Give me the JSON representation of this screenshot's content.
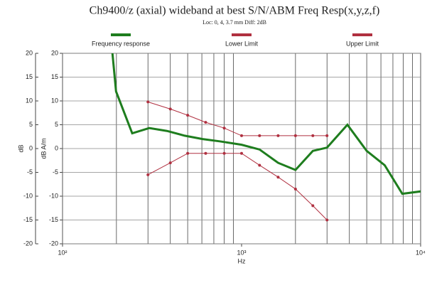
{
  "chart_data": {
    "type": "line",
    "title": "Ch9400/z (axial) wideband at best S/N/ABM Freq Resp(x,y,z,f)",
    "subtitle": "Loc: 0, 4, 3.7 mm Diff: 2dB",
    "x_label": "Hz",
    "y_label": "dB",
    "y2_label": "dB A/m",
    "xscale": "log",
    "xlim": [
      100,
      10000
    ],
    "xticks": [
      {
        "value": 100,
        "label": "10²"
      },
      {
        "value": 1000,
        "label": "10³"
      },
      {
        "value": 10000,
        "label": "10⁴"
      }
    ],
    "xminorticks": [
      200,
      300,
      400,
      500,
      600,
      700,
      800,
      900,
      2000,
      3000,
      4000,
      5000,
      6000,
      7000,
      8000,
      9000
    ],
    "ylim": [
      -20,
      20
    ],
    "yticks": [
      -20,
      -15,
      -10,
      -5,
      0,
      5,
      10,
      15,
      20
    ],
    "grid": true,
    "series": [
      {
        "name": "Frequency response",
        "color": "#1e7d1e",
        "markers": false,
        "x": [
          190,
          199,
          245,
          305,
          383,
          481,
          605,
          760,
          1000,
          1260,
          1600,
          2000,
          2500,
          3000,
          3900,
          5000,
          6300,
          7900,
          10000
        ],
        "values": [
          20,
          12,
          3.2,
          4.3,
          3.7,
          2.7,
          2,
          1.5,
          0.8,
          -0.2,
          -3,
          -4.5,
          -0.5,
          0.2,
          5,
          -0.5,
          -3.5,
          -9.5,
          -9
        ]
      },
      {
        "name": "Lower Limit",
        "color": "#b03040",
        "markers": true,
        "x": [
          300,
          400,
          500,
          630,
          800,
          1000,
          1260,
          1600,
          2000,
          2500,
          3000
        ],
        "values": [
          -5.5,
          -3,
          -1,
          -1,
          -1,
          -1,
          -3.5,
          -6,
          -8.5,
          -12,
          -15
        ]
      },
      {
        "name": "Upper Limit",
        "color": "#b03040",
        "markers": true,
        "x": [
          300,
          400,
          500,
          630,
          800,
          1000,
          1260,
          1600,
          2000,
          2500,
          3000
        ],
        "values": [
          9.8,
          8.3,
          7,
          5.5,
          4.3,
          2.7,
          2.7,
          2.7,
          2.7,
          2.7,
          2.7
        ]
      }
    ]
  }
}
